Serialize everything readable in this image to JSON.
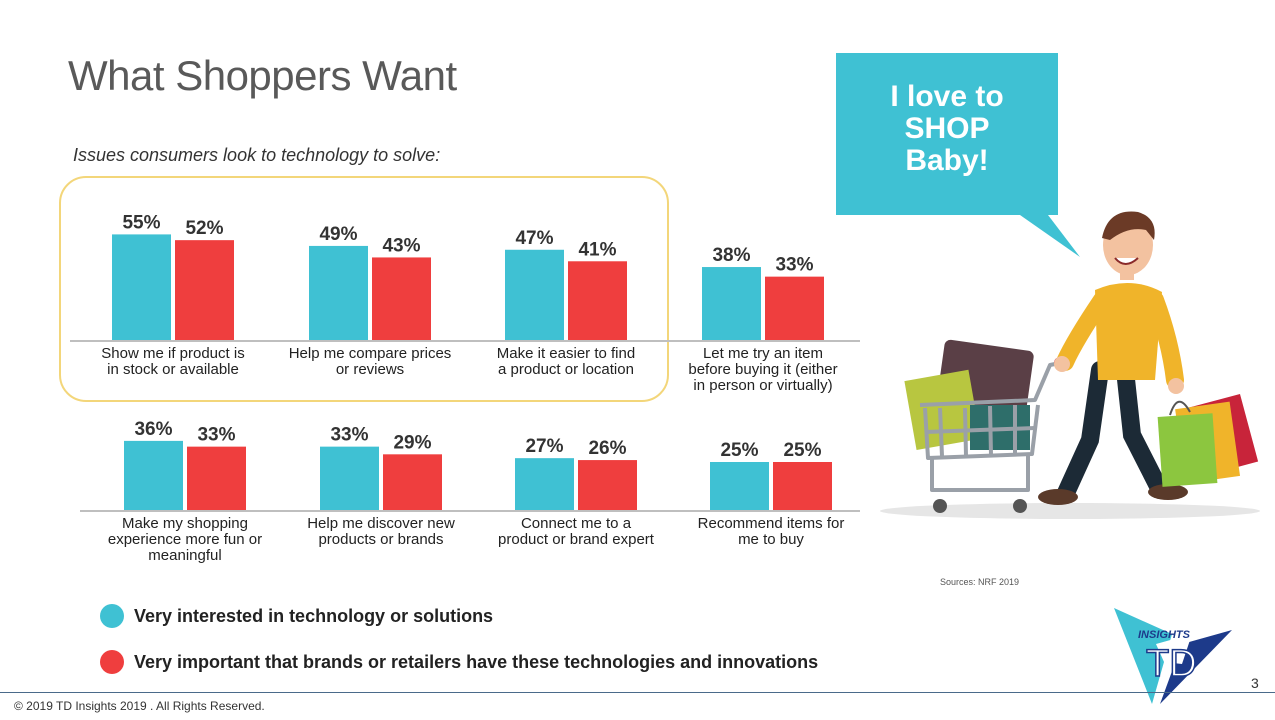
{
  "title": "What Shoppers Want",
  "subtitle": "Issues consumers look to technology to solve:",
  "bubble_text": "I love to\nSHOP\nBaby!",
  "sources": "Sources: NRF 2019",
  "copyright": "© 2019 TD Insights 2019 . All Rights Reserved.",
  "page_number": "3",
  "logo": {
    "small_text": "INSIGHTS",
    "big_text": "TD"
  },
  "colors": {
    "teal": "#3fc1d3",
    "red": "#ef3e3e",
    "highlight_border": "#f3d67a",
    "title": "#595959"
  },
  "legend": [
    {
      "label": "Very interested in technology or solutions",
      "color": "#3fc1d3"
    },
    {
      "label": "Very important that brands or retailers have these technologies and innovations",
      "color": "#ef3e3e"
    }
  ],
  "chart_data": {
    "type": "bar",
    "series": [
      {
        "color": "#3fc1d3",
        "values": [
          55,
          49,
          47,
          38,
          36,
          33,
          27,
          25
        ]
      },
      {
        "color": "#ef3e3e",
        "values": [
          52,
          43,
          41,
          33,
          33,
          29,
          26,
          25
        ]
      }
    ],
    "data_labels": [
      [
        "55%",
        "49%",
        "47%",
        "38%",
        "36%",
        "33%",
        "27%",
        "25%"
      ],
      [
        "52%",
        "43%",
        "41%",
        "33%",
        "33%",
        "29%",
        "26%",
        "25%"
      ]
    ],
    "categories": [
      [
        "Show me if product is",
        "in stock or available"
      ],
      [
        "Help me compare prices",
        "or reviews"
      ],
      [
        "Make it easier to find",
        "a product or location"
      ],
      [
        "Let me try an item",
        "before buying it (either",
        "in person or virtually)"
      ],
      [
        "Make my shopping",
        "experience more fun or",
        "meaningful"
      ],
      [
        "Help me discover new",
        "products or brands"
      ],
      [
        "Connect me to a",
        "product or brand expert"
      ],
      [
        "Recommend items for",
        "me to buy"
      ]
    ],
    "rows": 2,
    "highlighted_categories": [
      0,
      1,
      2
    ],
    "value_unit": "%"
  }
}
